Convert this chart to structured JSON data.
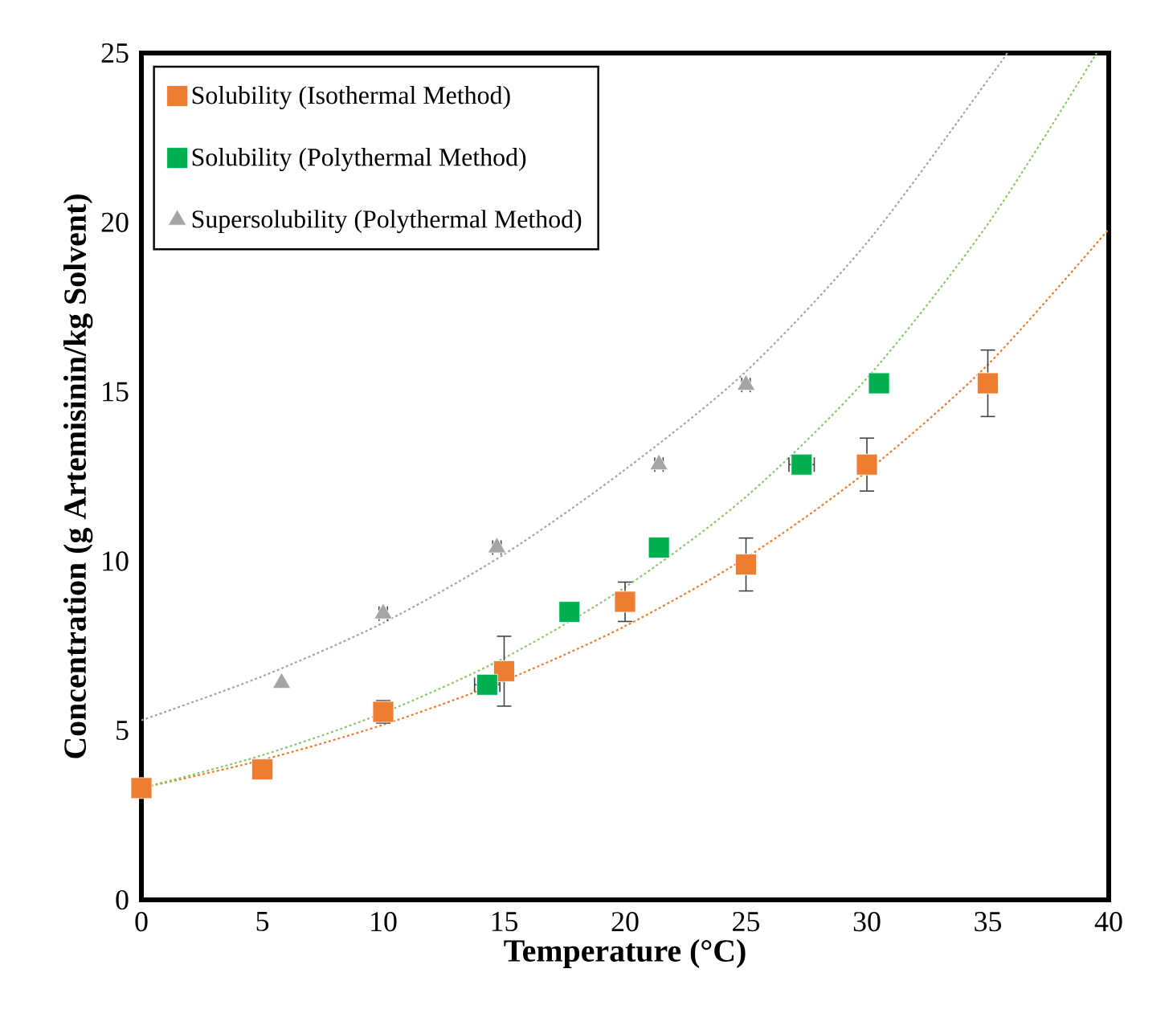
{
  "chart_data": {
    "type": "scatter",
    "xlabel": "Temperature (°C)",
    "ylabel": "Concentration  (g Artemisinin/kg Solvent)",
    "xlim": [
      0,
      40
    ],
    "ylim": [
      0,
      25
    ],
    "xticks": [
      0,
      5,
      10,
      15,
      20,
      25,
      30,
      35,
      40
    ],
    "yticks": [
      0,
      5,
      10,
      15,
      20,
      25
    ],
    "legend": "top left",
    "marker": "square",
    "series": [
      {
        "name": "Solubility (Isothermal Method)",
        "color": "#ed7d31",
        "x": [
          0,
          5,
          10,
          15,
          20,
          25,
          30,
          35
        ],
        "values": [
          3.3,
          3.85,
          5.55,
          6.75,
          8.8,
          9.9,
          12.85,
          15.25
        ],
        "errors": [
          null,
          null,
          0.35,
          1.05,
          0.6,
          0.8,
          0.8,
          1.0
        ]
      },
      {
        "name": "Solubility (Polythermal Method)",
        "color": "#00b050",
        "x": [
          14.3,
          17.7,
          21.4,
          27.3,
          30.5
        ],
        "values": [
          6.35,
          8.5,
          10.4,
          12.85,
          15.25
        ],
        "xerrors": [
          0.55,
          null,
          null,
          0.55,
          null
        ]
      },
      {
        "name": "Supersolubility (Polythermal Method)",
        "color": "#a5a5a5",
        "marker": "triangle",
        "x": [
          5.8,
          10,
          14.7,
          21.4,
          25
        ],
        "values": [
          6.4,
          8.45,
          10.4,
          12.85,
          15.2
        ],
        "xerrors": [
          null,
          0.2,
          0.2,
          0.2,
          0.2
        ]
      },
      {
        "type": "line",
        "color": "#ed7d31",
        "marker": "none",
        "line_style": "dotted",
        "x": [
          0,
          5,
          10,
          15,
          20,
          25,
          30,
          35,
          40
        ],
        "values": [
          3.3,
          4.13,
          5.17,
          6.47,
          8.08,
          10.1,
          12.65,
          15.8,
          19.8
        ]
      },
      {
        "type": "line",
        "color": "#8cc870",
        "marker": "none",
        "line_style": "dotted",
        "x": [
          0,
          5,
          10,
          15,
          20,
          25,
          30,
          35,
          39.5
        ],
        "values": [
          3.3,
          4.27,
          5.52,
          7.14,
          9.23,
          11.9,
          15.4,
          19.95,
          25
        ]
      },
      {
        "type": "line",
        "color": "#a5a5a5",
        "marker": "none",
        "line_style": "dotted",
        "x": [
          0,
          5,
          10,
          15,
          20,
          25,
          30,
          35,
          35.8
        ],
        "values": [
          5.3,
          6.6,
          8.18,
          10.2,
          12.7,
          15.6,
          19.4,
          24.2,
          25
        ]
      }
    ]
  }
}
